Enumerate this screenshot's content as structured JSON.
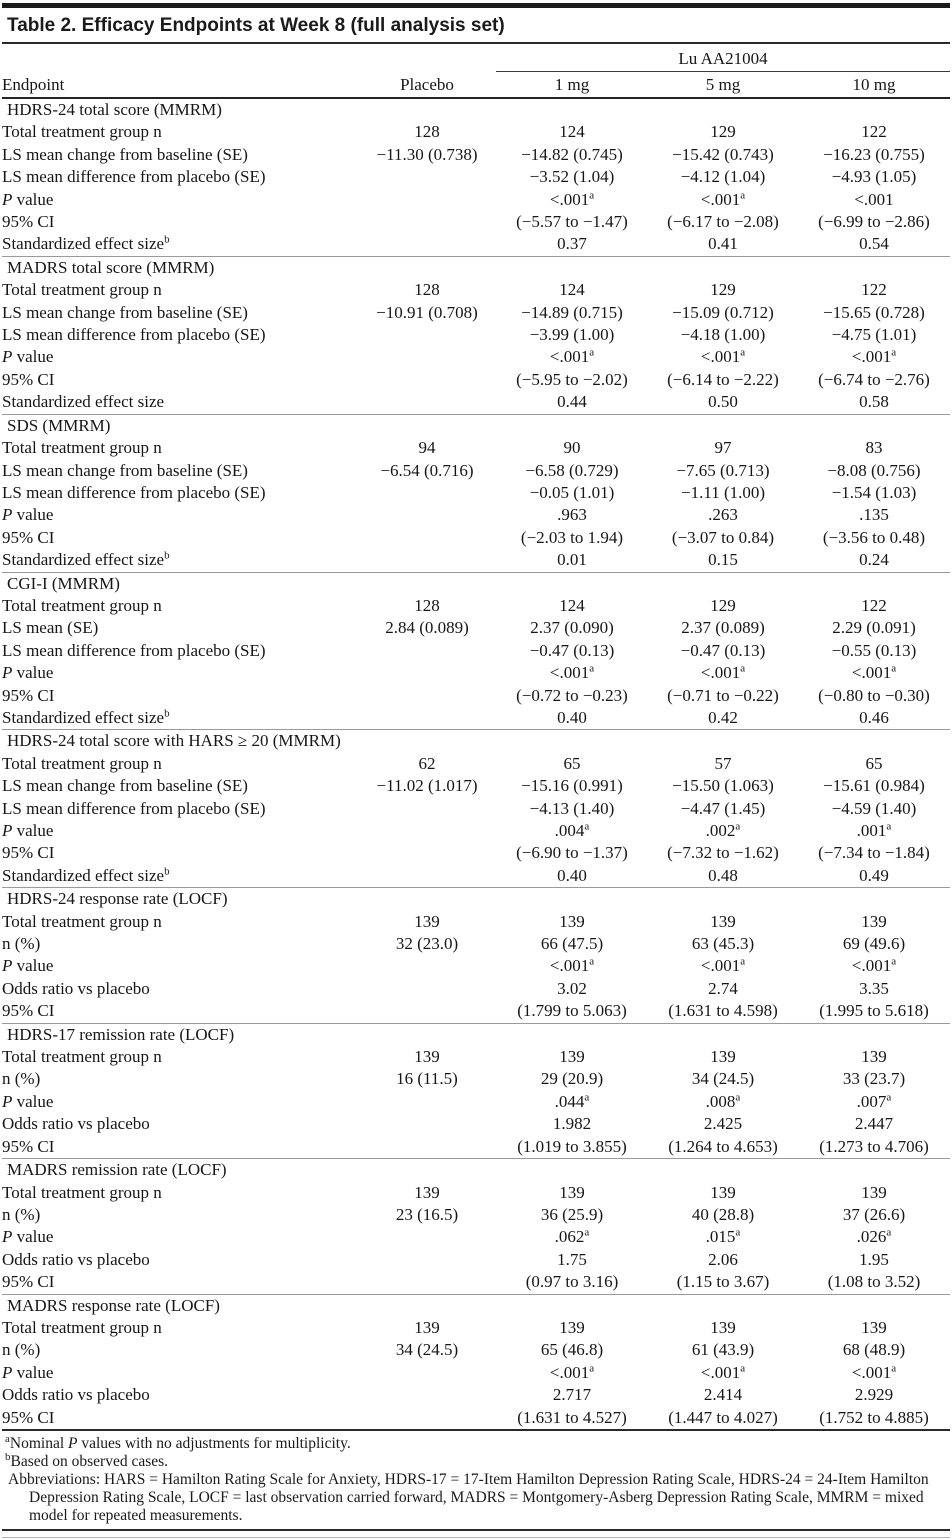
{
  "title": "Table 2. Efficacy Endpoints at Week 8 (full analysis set)",
  "header": {
    "group_label": "Lu AA21004",
    "columns": [
      "Endpoint",
      "Placebo",
      "1 mg",
      "5 mg",
      "10 mg"
    ]
  },
  "sections": [
    {
      "name": "HDRS-24 total score (MMRM)",
      "rows": [
        {
          "label": "Total treatment group n",
          "values": [
            "128",
            "124",
            "129",
            "122"
          ]
        },
        {
          "label": "LS mean change from baseline (SE)",
          "values": [
            "−11.30 (0.738)",
            "−14.82 (0.745)",
            "−15.42 (0.743)",
            "−16.23 (0.755)"
          ]
        },
        {
          "label": "LS mean difference from placebo (SE)",
          "values": [
            "",
            "−3.52 (1.04)",
            "−4.12 (1.04)",
            "−4.93 (1.05)"
          ]
        },
        {
          "label": "*P* value",
          "values": [
            "",
            "<.001^a",
            "<.001^a",
            "<.001"
          ]
        },
        {
          "label": "95% CI",
          "values": [
            "",
            "(−5.57 to −1.47)",
            "(−6.17 to −2.08)",
            "(−6.99 to −2.86)"
          ]
        },
        {
          "label": "Standardized effect size^b",
          "values": [
            "",
            "0.37",
            "0.41",
            "0.54"
          ]
        }
      ]
    },
    {
      "name": "MADRS total score (MMRM)",
      "rows": [
        {
          "label": "Total treatment group n",
          "values": [
            "128",
            "124",
            "129",
            "122"
          ]
        },
        {
          "label": "LS mean change from baseline (SE)",
          "values": [
            "−10.91 (0.708)",
            "−14.89 (0.715)",
            "−15.09 (0.712)",
            "−15.65 (0.728)"
          ]
        },
        {
          "label": "LS mean difference from placebo (SE)",
          "values": [
            "",
            "−3.99 (1.00)",
            "−4.18 (1.00)",
            "−4.75 (1.01)"
          ]
        },
        {
          "label": "*P* value",
          "values": [
            "",
            "<.001^a",
            "<.001^a",
            "<.001^a"
          ]
        },
        {
          "label": "95% CI",
          "values": [
            "",
            "(−5.95 to −2.02)",
            "(−6.14 to −2.22)",
            "(−6.74 to −2.76)"
          ]
        },
        {
          "label": "Standardized effect size",
          "values": [
            "",
            "0.44",
            "0.50",
            "0.58"
          ]
        }
      ]
    },
    {
      "name": "SDS (MMRM)",
      "rows": [
        {
          "label": "Total treatment group n",
          "values": [
            "94",
            "90",
            "97",
            "83"
          ]
        },
        {
          "label": "LS mean change from baseline (SE)",
          "values": [
            "−6.54 (0.716)",
            "−6.58 (0.729)",
            "−7.65 (0.713)",
            "−8.08 (0.756)"
          ]
        },
        {
          "label": "LS mean difference from placebo (SE)",
          "values": [
            "",
            "−0.05 (1.01)",
            "−1.11 (1.00)",
            "−1.54 (1.03)"
          ]
        },
        {
          "label": "*P* value",
          "values": [
            "",
            ".963",
            ".263",
            ".135"
          ]
        },
        {
          "label": "95% CI",
          "values": [
            "",
            "(−2.03 to 1.94)",
            "(−3.07 to 0.84)",
            "(−3.56 to 0.48)"
          ]
        },
        {
          "label": "Standardized effect size^b",
          "values": [
            "",
            "0.01",
            "0.15",
            "0.24"
          ]
        }
      ]
    },
    {
      "name": "CGI-I (MMRM)",
      "rows": [
        {
          "label": "Total treatment group n",
          "values": [
            "128",
            "124",
            "129",
            "122"
          ]
        },
        {
          "label": "LS mean (SE)",
          "values": [
            "2.84 (0.089)",
            "2.37 (0.090)",
            "2.37 (0.089)",
            "2.29 (0.091)"
          ]
        },
        {
          "label": "LS mean difference from placebo (SE)",
          "values": [
            "",
            "−0.47 (0.13)",
            "−0.47 (0.13)",
            "−0.55 (0.13)"
          ]
        },
        {
          "label": "*P* value",
          "values": [
            "",
            "<.001^a",
            "<.001^a",
            "<.001^a"
          ]
        },
        {
          "label": "95% CI",
          "values": [
            "",
            "(−0.72 to −0.23)",
            "(−0.71 to −0.22)",
            "(−0.80 to −0.30)"
          ]
        },
        {
          "label": "Standardized effect size^b",
          "values": [
            "",
            "0.40",
            "0.42",
            "0.46"
          ]
        }
      ]
    },
    {
      "name": "HDRS-24 total score with HARS ≥ 20 (MMRM)",
      "rows": [
        {
          "label": "Total treatment group n",
          "values": [
            "62",
            "65",
            "57",
            "65"
          ]
        },
        {
          "label": "LS mean change from baseline (SE)",
          "values": [
            "−11.02 (1.017)",
            "−15.16 (0.991)",
            "−15.50 (1.063)",
            "−15.61 (0.984)"
          ]
        },
        {
          "label": "LS mean difference from placebo (SE)",
          "values": [
            "",
            "−4.13 (1.40)",
            "−4.47 (1.45)",
            "−4.59 (1.40)"
          ]
        },
        {
          "label": "*P* value",
          "values": [
            "",
            ".004^a",
            ".002^a",
            ".001^a"
          ]
        },
        {
          "label": "95% CI",
          "values": [
            "",
            "(−6.90 to −1.37)",
            "(−7.32 to −1.62)",
            "(−7.34 to −1.84)"
          ]
        },
        {
          "label": "Standardized effect size^b",
          "values": [
            "",
            "0.40",
            "0.48",
            "0.49"
          ]
        }
      ]
    },
    {
      "name": "HDRS-24 response rate (LOCF)",
      "rows": [
        {
          "label": "Total treatment group n",
          "values": [
            "139",
            "139",
            "139",
            "139"
          ]
        },
        {
          "label": "n (%)",
          "values": [
            "32 (23.0)",
            "66 (47.5)",
            "63 (45.3)",
            "69 (49.6)"
          ]
        },
        {
          "label": "*P* value",
          "values": [
            "",
            "<.001^a",
            "<.001^a",
            "<.001^a"
          ]
        },
        {
          "label": "Odds ratio vs placebo",
          "values": [
            "",
            "3.02",
            "2.74",
            "3.35"
          ]
        },
        {
          "label": "95% CI",
          "values": [
            "",
            "(1.799 to 5.063)",
            "(1.631 to 4.598)",
            "(1.995 to 5.618)"
          ]
        }
      ]
    },
    {
      "name": "HDRS-17 remission rate (LOCF)",
      "rows": [
        {
          "label": "Total treatment group n",
          "values": [
            "139",
            "139",
            "139",
            "139"
          ]
        },
        {
          "label": "n (%)",
          "values": [
            "16 (11.5)",
            "29 (20.9)",
            "34 (24.5)",
            "33 (23.7)"
          ]
        },
        {
          "label": "*P* value",
          "values": [
            "",
            ".044^a",
            ".008^a",
            ".007^a"
          ]
        },
        {
          "label": "Odds ratio vs placebo",
          "values": [
            "",
            "1.982",
            "2.425",
            "2.447"
          ]
        },
        {
          "label": "95% CI",
          "values": [
            "",
            "(1.019 to 3.855)",
            "(1.264 to 4.653)",
            "(1.273 to 4.706)"
          ]
        }
      ]
    },
    {
      "name": "MADRS remission rate (LOCF)",
      "rows": [
        {
          "label": "Total treatment group n",
          "values": [
            "139",
            "139",
            "139",
            "139"
          ]
        },
        {
          "label": "n (%)",
          "values": [
            "23 (16.5)",
            "36 (25.9)",
            "40 (28.8)",
            "37 (26.6)"
          ]
        },
        {
          "label": "*P* value",
          "values": [
            "",
            ".062^a",
            ".015^a",
            ".026^a"
          ]
        },
        {
          "label": "Odds ratio vs placebo",
          "values": [
            "",
            "1.75",
            "2.06",
            "1.95"
          ]
        },
        {
          "label": "95% CI",
          "values": [
            "",
            "(0.97 to 3.16)",
            "(1.15 to 3.67)",
            "(1.08 to 3.52)"
          ]
        }
      ]
    },
    {
      "name": "MADRS response rate (LOCF)",
      "rows": [
        {
          "label": "Total treatment group n",
          "values": [
            "139",
            "139",
            "139",
            "139"
          ]
        },
        {
          "label": "n (%)",
          "values": [
            "34 (24.5)",
            "65 (46.8)",
            "61 (43.9)",
            "68 (48.9)"
          ]
        },
        {
          "label": "*P* value",
          "values": [
            "",
            "<.001^a",
            "<.001^a",
            "<.001^a"
          ]
        },
        {
          "label": "Odds ratio vs placebo",
          "values": [
            "",
            "2.717",
            "2.414",
            "2.929"
          ]
        },
        {
          "label": "95% CI",
          "values": [
            "",
            "(1.631 to 4.527)",
            "(1.447 to 4.027)",
            "(1.752 to 4.885)"
          ]
        }
      ]
    }
  ],
  "footnotes": [
    "^aNominal *P* values with no adjustments for multiplicity.",
    "^bBased on observed cases.",
    "Abbreviations: HARS = Hamilton Rating Scale for Anxiety, HDRS-17 = 17-Item Hamilton Depression Rating Scale, HDRS-24 = 24-Item Hamilton Depression Rating Scale, LOCF = last observation carried forward, MADRS = Montgomery-Asberg Depression Rating Scale, MMRM = mixed model for repeated measurements."
  ],
  "colors": {
    "text": "#151515",
    "heavy_rule": "#1c1c1c",
    "section_rule": "#9a9a9a"
  }
}
